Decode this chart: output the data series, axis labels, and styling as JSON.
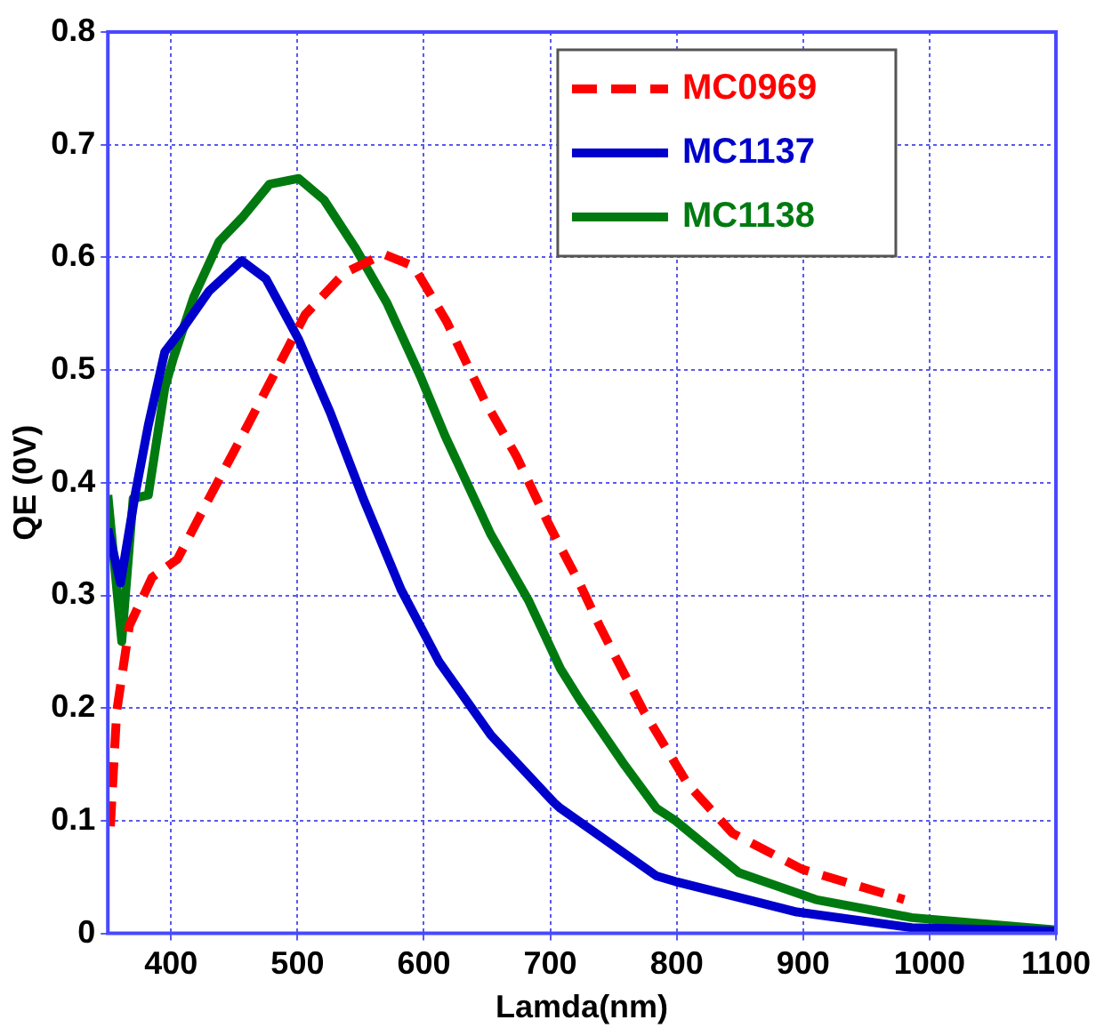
{
  "chart_data": {
    "type": "line",
    "xlabel": "Lamda(nm)",
    "ylabel": "QE (0V)",
    "xlim": [
      350,
      1100
    ],
    "xticks": [
      400,
      500,
      600,
      700,
      800,
      900,
      1000,
      1100
    ],
    "ylim": [
      0,
      0.8
    ],
    "yticks": [
      0,
      0.1,
      0.2,
      0.3,
      0.4,
      0.5,
      0.6,
      0.7,
      0.8
    ],
    "grid": true,
    "legend": "top right",
    "marker": "none",
    "series": [
      {
        "name": "MC0969",
        "color": "#ff0000",
        "line_style": "dashed",
        "x": [
          352,
          357,
          367,
          385,
          405,
          430,
          456,
          481,
          506,
          537,
          568,
          592,
          618,
          648,
          673,
          698,
          708,
          723,
          739,
          749,
          774,
          809,
          844,
          899,
          980
        ],
        "values": [
          0.095,
          0.197,
          0.273,
          0.316,
          0.332,
          0.386,
          0.441,
          0.495,
          0.549,
          0.586,
          0.603,
          0.592,
          0.543,
          0.473,
          0.424,
          0.365,
          0.343,
          0.311,
          0.273,
          0.251,
          0.197,
          0.132,
          0.089,
          0.057,
          0.03
        ]
      },
      {
        "name": "MC1137",
        "color": "#0000cc",
        "line_style": "solid",
        "x": [
          350,
          360,
          372,
          382,
          395,
          410,
          430,
          456,
          475,
          501,
          526,
          552,
          582,
          612,
          653,
          703,
          708,
          784,
          799,
          895,
          986,
          1062,
          1100
        ],
        "values": [
          0.359,
          0.311,
          0.392,
          0.451,
          0.516,
          0.538,
          0.57,
          0.597,
          0.581,
          0.527,
          0.462,
          0.386,
          0.305,
          0.241,
          0.176,
          0.116,
          0.111,
          0.051,
          0.046,
          0.019,
          0.005,
          0.003,
          0.002
        ]
      },
      {
        "name": "MC1138",
        "color": "#007a10",
        "line_style": "solid",
        "x": [
          350,
          361,
          370,
          382,
          395,
          402,
          418,
          438,
          456,
          478,
          501,
          521,
          546,
          571,
          597,
          617,
          653,
          683,
          708,
          723,
          759,
          784,
          799,
          849,
          910,
          986,
          1100
        ],
        "values": [
          0.389,
          0.259,
          0.386,
          0.389,
          0.484,
          0.511,
          0.565,
          0.614,
          0.635,
          0.665,
          0.67,
          0.651,
          0.608,
          0.559,
          0.495,
          0.441,
          0.354,
          0.295,
          0.235,
          0.208,
          0.149,
          0.111,
          0.1,
          0.054,
          0.03,
          0.014,
          0.003
        ]
      }
    ]
  }
}
